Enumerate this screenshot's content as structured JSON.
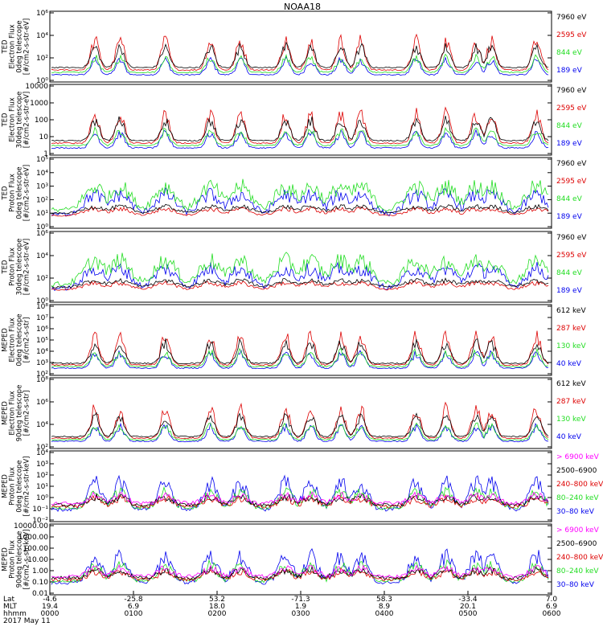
{
  "title": "NOAA18",
  "colors": {
    "black": "#000000",
    "red": "#dd0000",
    "green": "#22dd22",
    "blue": "#0000ee",
    "magenta": "#ff00ff"
  },
  "chart_data": [
    {
      "type": "line",
      "ylabel": [
        "TED",
        "Electron Flux",
        "0deg telescope",
        "[#/cm2-s-str-eV]"
      ],
      "yticks": [
        "10⁰",
        "10²",
        "10⁴",
        "10⁶"
      ],
      "yscale": "log",
      "ylim": [
        1,
        1000000
      ],
      "legend": [
        {
          "label": "7960 eV",
          "color": "black"
        },
        {
          "label": "2595 eV",
          "color": "red"
        },
        {
          "label": "844 eV",
          "color": "green"
        },
        {
          "label": "189 eV",
          "color": "blue"
        }
      ],
      "bursts": [
        [
          0.14,
          0.5
        ],
        [
          0.33,
          0.9
        ],
        [
          0.48,
          0.4
        ],
        [
          0.61,
          0.7
        ],
        [
          0.84,
          0.95
        ],
        [
          0.97,
          0.45
        ]
      ]
    },
    {
      "type": "line",
      "ylabel": [
        "TED",
        "Electron Flux",
        "30deg telescope",
        "[#/cm2-s-str-eV]"
      ],
      "yticks": [
        "1",
        "10",
        "100",
        "1000",
        "10000"
      ],
      "yscale": "log",
      "ylim": [
        1,
        10000
      ],
      "legend": [
        {
          "label": "7960 eV",
          "color": "black"
        },
        {
          "label": "2595 eV",
          "color": "red"
        },
        {
          "label": "844 eV",
          "color": "green"
        },
        {
          "label": "189 eV",
          "color": "blue"
        }
      ],
      "bursts": [
        [
          0.14,
          0.5
        ],
        [
          0.33,
          0.9
        ],
        [
          0.48,
          0.4
        ],
        [
          0.61,
          0.7
        ],
        [
          0.84,
          0.95
        ],
        [
          0.97,
          0.45
        ]
      ]
    },
    {
      "type": "line",
      "ylabel": [
        "TED",
        "Proton Flux",
        "0deg telescope",
        "[#/cm2-s-str-eV]"
      ],
      "yticks": [
        "10⁰",
        "10¹",
        "10²",
        "10³",
        "10⁴",
        "10⁵"
      ],
      "yscale": "log",
      "ylim": [
        1,
        100000
      ],
      "legend": [
        {
          "label": "7960 eV",
          "color": "black"
        },
        {
          "label": "2595 eV",
          "color": "red"
        },
        {
          "label": "844 eV",
          "color": "green"
        },
        {
          "label": "189 eV",
          "color": "blue"
        }
      ]
    },
    {
      "type": "line",
      "ylabel": [
        "TED",
        "Proton Flux",
        "30deg telescope",
        "[#/cm2-s-str-eV]"
      ],
      "yticks": [
        "10⁰",
        "10²",
        "10⁴",
        "10⁶"
      ],
      "yscale": "log",
      "ylim": [
        1,
        1000000
      ],
      "legend": [
        {
          "label": "7960 eV",
          "color": "black"
        },
        {
          "label": "2595 eV",
          "color": "red"
        },
        {
          "label": "844 eV",
          "color": "green"
        },
        {
          "label": "189 eV",
          "color": "blue"
        }
      ]
    },
    {
      "type": "line",
      "ylabel": [
        "MEPED",
        "Electron Flux",
        "0deg telescope",
        "[#/cm2-s-str]"
      ],
      "yticks": [
        "10²",
        "10³",
        "10⁴",
        "10⁵",
        "10⁶",
        "10⁷",
        "10⁸"
      ],
      "yscale": "log",
      "ylim": [
        100,
        100000000
      ],
      "legend": [
        {
          "label": "612 keV",
          "color": "black"
        },
        {
          "label": "287 keV",
          "color": "red"
        },
        {
          "label": "130 keV",
          "color": "green"
        },
        {
          "label": "40 keV",
          "color": "blue"
        }
      ]
    },
    {
      "type": "line",
      "ylabel": [
        "MEPED",
        "Electron Flux",
        "90deg telescope",
        "[#/cm2-s-str]"
      ],
      "yticks": [
        "10²",
        "10⁴",
        "10⁶",
        "10⁸"
      ],
      "yscale": "log",
      "ylim": [
        100,
        100000000
      ],
      "legend": [
        {
          "label": "612 keV",
          "color": "black"
        },
        {
          "label": "287 keV",
          "color": "red"
        },
        {
          "label": "130 keV",
          "color": "green"
        },
        {
          "label": "40 keV",
          "color": "blue"
        }
      ]
    },
    {
      "type": "line",
      "ylabel": [
        "MEPED",
        "Proton Flux",
        "0deg telescope",
        "[#/cm2-s-str-keV]"
      ],
      "yticks": [
        "10⁻²",
        "10⁻¹",
        "10⁰",
        "10¹",
        "10²",
        "10³",
        "10⁴"
      ],
      "yscale": "log",
      "ylim": [
        0.01,
        10000
      ],
      "legend": [
        {
          "label": "> 6900 keV",
          "color": "magenta"
        },
        {
          "label": "2500–6900",
          "color": "black"
        },
        {
          "label": "240–800 keV",
          "color": "red"
        },
        {
          "label": "80–240 keV",
          "color": "green"
        },
        {
          "label": "30–80 keV",
          "color": "blue"
        }
      ]
    },
    {
      "type": "line",
      "ylabel": [
        "MEPED",
        "Proton Flux",
        "90deg telescope",
        "[#/cm2-s-str-keV]"
      ],
      "yticks": [
        "0.01",
        "0.10",
        "1.00",
        "10.00",
        "100.00",
        "1000.00",
        "10000.00"
      ],
      "yscale": "log",
      "ylim": [
        0.01,
        10000
      ],
      "legend": [
        {
          "label": "> 6900 keV",
          "color": "magenta"
        },
        {
          "label": "2500–6900",
          "color": "black"
        },
        {
          "label": "240–800 keV",
          "color": "red"
        },
        {
          "label": "80–240 keV",
          "color": "green"
        },
        {
          "label": "30–80 keV",
          "color": "blue"
        }
      ]
    }
  ],
  "xaxis": {
    "row_labels": [
      "Lat",
      "MLT",
      "hhmm",
      "2017 May 11"
    ],
    "ticks": [
      {
        "lat": "-4.6",
        "mlt": "19.4",
        "hhmm": "0000"
      },
      {
        "lat": "-25.8",
        "mlt": "6.9",
        "hhmm": "0100"
      },
      {
        "lat": "53.2",
        "mlt": "18.0",
        "hhmm": "0200"
      },
      {
        "lat": "-71.3",
        "mlt": "1.9",
        "hhmm": "0300"
      },
      {
        "lat": "58.3",
        "mlt": "8.9",
        "hhmm": "0400"
      },
      {
        "lat": "-33.4",
        "mlt": "20.1",
        "hhmm": "0500"
      },
      {
        "lat": "7.0",
        "mlt": "6.9",
        "hhmm": "0600"
      }
    ]
  }
}
